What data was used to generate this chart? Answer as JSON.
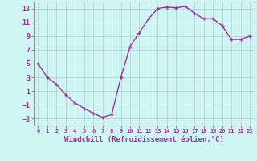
{
  "x": [
    0,
    1,
    2,
    3,
    4,
    5,
    6,
    7,
    8,
    9,
    10,
    11,
    12,
    13,
    14,
    15,
    16,
    17,
    18,
    19,
    20,
    21,
    22,
    23
  ],
  "y": [
    5,
    3,
    2,
    0.5,
    -0.7,
    -1.5,
    -2.2,
    -2.8,
    -2.4,
    3,
    7.5,
    9.5,
    11.5,
    13.0,
    13.2,
    13.1,
    13.3,
    12.3,
    11.5,
    11.5,
    10.5,
    8.5,
    8.5,
    9.0
  ],
  "line_color": "#993399",
  "marker": "+",
  "marker_size": 3,
  "line_width": 1.0,
  "background_color": "#cef4f4",
  "grid_color": "#b0cccc",
  "xlabel": "Windchill (Refroidissement éolien,°C)",
  "xlabel_fontsize": 6.5,
  "tick_fontsize": 6,
  "xlim": [
    -0.5,
    23.5
  ],
  "ylim": [
    -4,
    14
  ],
  "yticks": [
    -3,
    -1,
    1,
    3,
    5,
    7,
    9,
    11,
    13
  ],
  "xticks": [
    0,
    1,
    2,
    3,
    4,
    5,
    6,
    7,
    8,
    9,
    10,
    11,
    12,
    13,
    14,
    15,
    16,
    17,
    18,
    19,
    20,
    21,
    22,
    23
  ],
  "tick_color": "#993399",
  "spine_color": "#888888"
}
